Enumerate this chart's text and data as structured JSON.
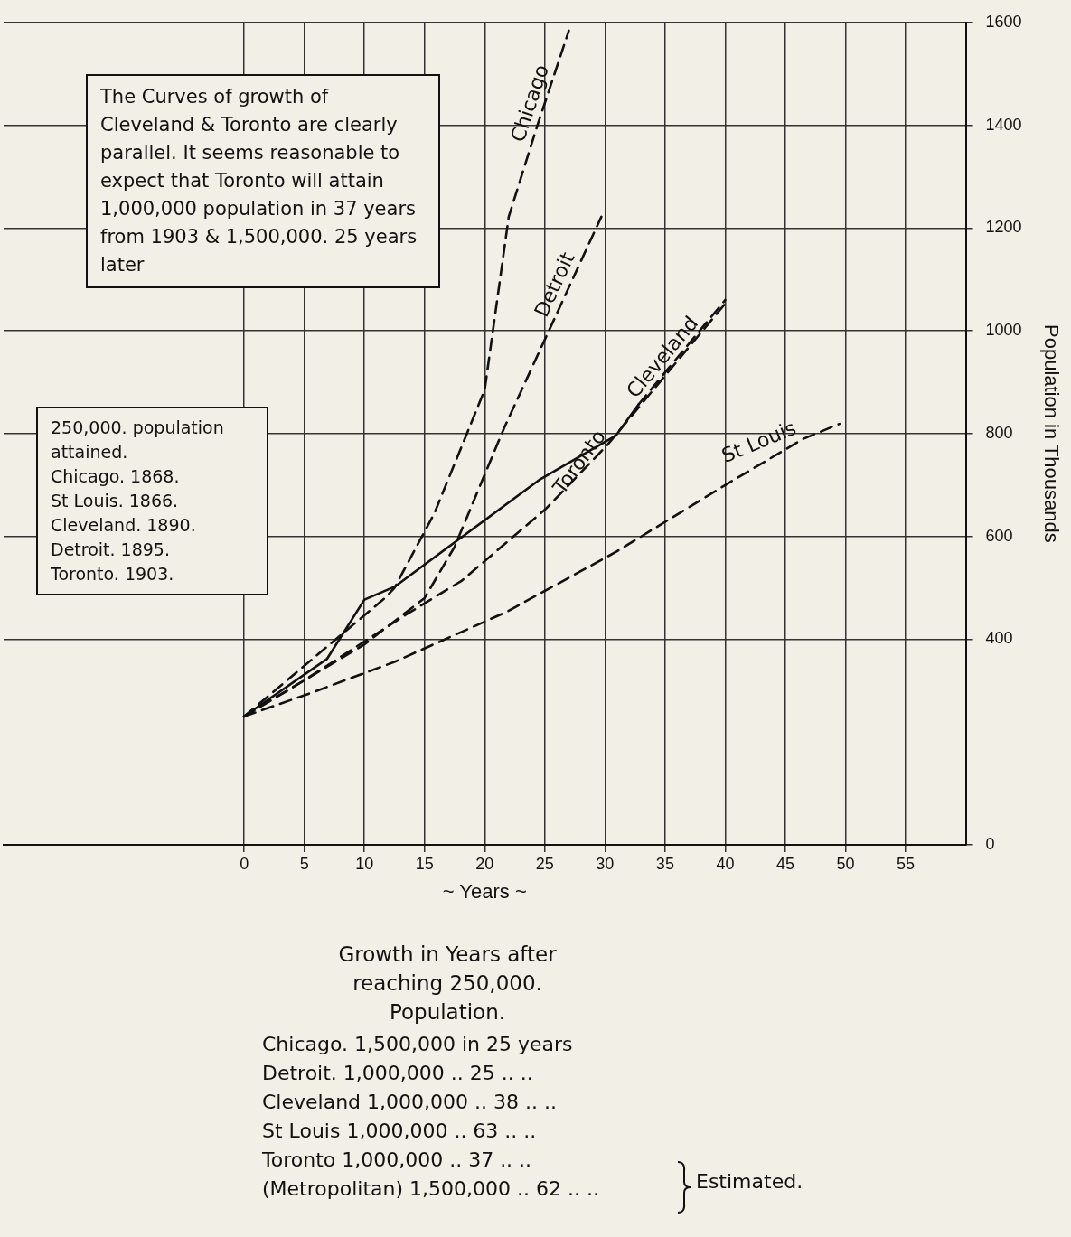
{
  "chart_data": {
    "type": "line",
    "title": "Growth in Years after reaching 250,000. Population.",
    "xlabel": "~ Years ~",
    "ylabel": "Population in Thousands",
    "xlim": [
      -20,
      60
    ],
    "xticks": [
      0,
      5,
      10,
      15,
      20,
      25,
      30,
      35,
      40,
      45,
      50,
      55
    ],
    "ylim": [
      0,
      1600
    ],
    "yticks": [
      0,
      400,
      600,
      800,
      1000,
      1200,
      1400,
      1600
    ],
    "grid": true,
    "series": [
      {
        "name": "Chicago",
        "color": "#111111",
        "line_style": "dashed",
        "x": [
          0,
          11.7,
          12.5,
          15.8,
          20,
          22,
          24.4,
          27
        ],
        "values": [
          250,
          480,
          500,
          644,
          885,
          1222,
          1401,
          1584
        ]
      },
      {
        "name": "Detroit",
        "color": "#111111",
        "line_style": "dashed",
        "x": [
          0,
          5,
          10,
          15,
          17.5,
          21.6,
          29.7
        ],
        "values": [
          250,
          320,
          390,
          480,
          580,
          810,
          1222
        ]
      },
      {
        "name": "Cleveland",
        "color": "#111111",
        "line_style": "dashed",
        "x": [
          0,
          5,
          13.4,
          18.1,
          25.1,
          30.2,
          40
        ],
        "values": [
          250,
          320,
          447,
          514,
          654,
          778,
          1053
        ]
      },
      {
        "name": "St Louis",
        "color": "#111111",
        "line_style": "dashed",
        "x": [
          0,
          5.5,
          12.5,
          21.8,
          31,
          40,
          46.5,
          49.5
        ],
        "values": [
          250,
          295,
          356,
          453,
          571,
          700,
          790,
          819
        ]
      },
      {
        "name": "Toronto",
        "color": "#111111",
        "line_style": "solid",
        "x": [
          0,
          6.9,
          10,
          12.5,
          24.6,
          30.9,
          32.8
        ],
        "values": [
          250,
          362,
          477,
          502,
          711,
          796,
          857
        ]
      },
      {
        "color": "#111111",
        "line_style": "dashed",
        "x": [
          32.8,
          40
        ],
        "values": [
          857,
          1060
        ]
      }
    ],
    "annotations": [
      "The Curves of growth of Cleveland & Toronto are clearly parallel. It seems reasonable to expect that Toronto will attain 1,000,000 population in 37 years from 1903 & 1,500,000. 25 years later",
      "250,000. population attained.",
      "Chicago. 1868.",
      "St Louis. 1866.",
      "Cleveland. 1890.",
      "Detroit. 1895.",
      "Toronto. 1903.",
      "Chicago. 1,500,000 in 25 years",
      "Detroit. 1,000,000 .. 25 .. ..",
      "Cleveland 1,000,000 .. 38 .. ..",
      "St Louis 1,000,000 .. 63 .. ..",
      "Toronto 1,000,000 .. 37 .. ..",
      "(Metropolitan) 1,500,000 .. 62 .. ..",
      "Estimated."
    ]
  }
}
